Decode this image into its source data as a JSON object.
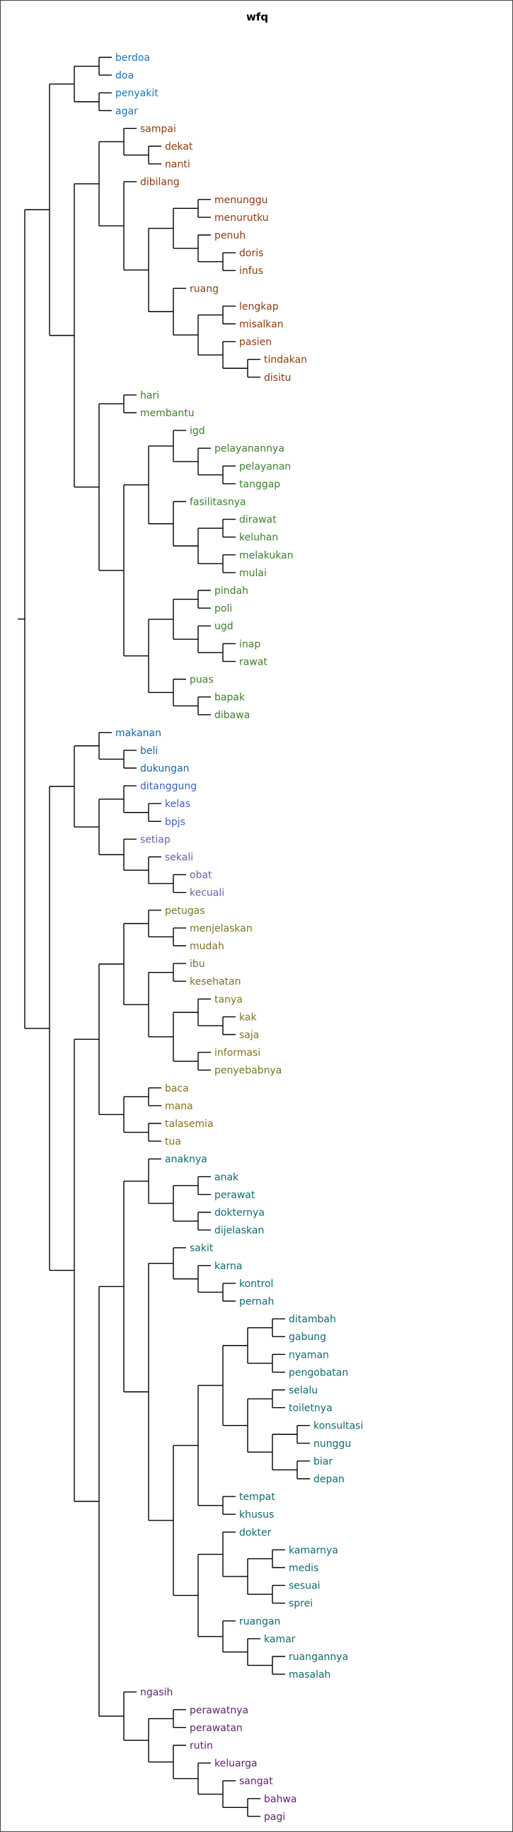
{
  "title": "wfq",
  "tree": {
    "c": [
      {
        "c": [
          {
            "c": [
              {
                "c": [
                  "berdoa",
                  "doa"
                ]
              },
              {
                "c": [
                  "penyakit",
                  "agar"
                ]
              }
            ]
          },
          {
            "c": [
              {
                "c": [
                  {
                    "c": [
                      "sampai",
                      {
                        "c": [
                          "dekat",
                          "nanti"
                        ]
                      }
                    ]
                  },
                  {
                    "c": [
                      "dibilang",
                      {
                        "c": [
                          {
                            "c": [
                              {
                                "c": [
                                  "menunggu",
                                  "menurutku"
                                ]
                              },
                              {
                                "c": [
                                  "penuh",
                                  {
                                    "c": [
                                      "doris",
                                      "infus"
                                    ]
                                  }
                                ]
                              }
                            ]
                          },
                          {
                            "c": [
                              "ruang",
                              {
                                "c": [
                                  {
                                    "c": [
                                      "lengkap",
                                      "misalkan"
                                    ]
                                  },
                                  {
                                    "c": [
                                      "pasien",
                                      {
                                        "c": [
                                          "tindakan",
                                          "disitu"
                                        ]
                                      }
                                    ]
                                  }
                                ]
                              }
                            ]
                          }
                        ]
                      }
                    ]
                  }
                ]
              },
              {
                "c": [
                  {
                    "c": [
                      "hari",
                      "membantu"
                    ]
                  },
                  {
                    "c": [
                      {
                        "c": [
                          {
                            "c": [
                              "igd",
                              {
                                "c": [
                                  "pelayanannya",
                                  {
                                    "c": [
                                      "pelayanan",
                                      "tanggap"
                                    ]
                                  }
                                ]
                              }
                            ]
                          },
                          {
                            "c": [
                              "fasilitasnya",
                              {
                                "c": [
                                  {
                                    "c": [
                                      "dirawat",
                                      "keluhan"
                                    ]
                                  },
                                  {
                                    "c": [
                                      "melakukan",
                                      "mulai"
                                    ]
                                  }
                                ]
                              }
                            ]
                          }
                        ]
                      },
                      {
                        "c": [
                          {
                            "c": [
                              {
                                "c": [
                                  "pindah",
                                  "poli"
                                ]
                              },
                              {
                                "c": [
                                  "ugd",
                                  {
                                    "c": [
                                      "inap",
                                      "rawat"
                                    ]
                                  }
                                ]
                              }
                            ]
                          },
                          {
                            "c": [
                              "puas",
                              {
                                "c": [
                                  "bapak",
                                  "dibawa"
                                ]
                              }
                            ]
                          }
                        ]
                      }
                    ]
                  }
                ]
              }
            ]
          }
        ]
      },
      {
        "c": [
          {
            "c": [
              {
                "c": [
                  "makanan",
                  {
                    "c": [
                      "beli",
                      "dukungan"
                    ]
                  }
                ]
              },
              {
                "c": [
                  {
                    "c": [
                      "ditanggung",
                      {
                        "c": [
                          "kelas",
                          "bpjs"
                        ]
                      }
                    ]
                  },
                  {
                    "c": [
                      "setiap",
                      {
                        "c": [
                          "sekali",
                          {
                            "c": [
                              "obat",
                              "kecuali"
                            ]
                          }
                        ]
                      }
                    ]
                  }
                ]
              }
            ]
          },
          {
            "c": [
              {
                "c": [
                  {
                    "c": [
                      {
                        "c": [
                          "petugas",
                          {
                            "c": [
                              "menjelaskan",
                              "mudah"
                            ]
                          }
                        ]
                      },
                      {
                        "c": [
                          {
                            "c": [
                              "ibu",
                              "kesehatan"
                            ]
                          },
                          {
                            "c": [
                              {
                                "c": [
                                  "tanya",
                                  {
                                    "c": [
                                      "kak",
                                      "saja"
                                    ]
                                  }
                                ]
                              },
                              {
                                "c": [
                                  "informasi",
                                  "penyebabnya"
                                ]
                              }
                            ]
                          }
                        ]
                      }
                    ]
                  },
                  {
                    "c": [
                      {
                        "c": [
                          "baca",
                          "mana"
                        ]
                      },
                      {
                        "c": [
                          "talasemia",
                          "tua"
                        ]
                      }
                    ]
                  }
                ]
              },
              {
                "c": [
                  {
                    "c": [
                      {
                        "c": [
                          "anaknya",
                          {
                            "c": [
                              {
                                "c": [
                                  "anak",
                                  "perawat"
                                ]
                              },
                              {
                                "c": [
                                  "dokternya",
                                  "dijelaskan"
                                ]
                              }
                            ]
                          }
                        ]
                      },
                      {
                        "c": [
                          {
                            "c": [
                              "sakit",
                              {
                                "c": [
                                  "karna",
                                  {
                                    "c": [
                                      "kontrol",
                                      "pernah"
                                    ]
                                  }
                                ]
                              }
                            ]
                          },
                          {
                            "c": [
                              {
                                "c": [
                                  {
                                    "c": [
                                      {
                                        "c": [
                                          {
                                            "c": [
                                              "ditambah",
                                              "gabung"
                                            ]
                                          },
                                          {
                                            "c": [
                                              "nyaman",
                                              "pengobatan"
                                            ]
                                          }
                                        ]
                                      },
                                      {
                                        "c": [
                                          {
                                            "c": [
                                              "selalu",
                                              "toiletnya"
                                            ]
                                          },
                                          {
                                            "c": [
                                              {
                                                "c": [
                                                  "konsultasi",
                                                  "nunggu"
                                                ]
                                              },
                                              {
                                                "c": [
                                                  "biar",
                                                  "depan"
                                                ]
                                              }
                                            ]
                                          }
                                        ]
                                      }
                                    ]
                                  },
                                  {
                                    "c": [
                                      "tempat",
                                      "khusus"
                                    ]
                                  }
                                ]
                              },
                              {
                                "c": [
                                  {
                                    "c": [
                                      "dokter",
                                      {
                                        "c": [
                                          {
                                            "c": [
                                              "kamarnya",
                                              "medis"
                                            ]
                                          },
                                          {
                                            "c": [
                                              "sesuai",
                                              "sprei"
                                            ]
                                          }
                                        ]
                                      }
                                    ]
                                  },
                                  {
                                    "c": [
                                      "ruangan",
                                      {
                                        "c": [
                                          "kamar",
                                          {
                                            "c": [
                                              "ruangannya",
                                              "masalah"
                                            ]
                                          }
                                        ]
                                      }
                                    ]
                                  }
                                ]
                              }
                            ]
                          }
                        ]
                      }
                    ]
                  },
                  {
                    "c": [
                      "ngasih",
                      {
                        "c": [
                          {
                            "c": [
                              "perawatnya",
                              "perawatan"
                            ]
                          },
                          {
                            "c": [
                              "rutin",
                              {
                                "c": [
                                  "keluarga",
                                  {
                                    "c": [
                                      "sangat",
                                      {
                                        "c": [
                                          "bahwa",
                                          "pagi"
                                        ]
                                      }
                                    ]
                                  }
                                ]
                              }
                            ]
                          }
                        ]
                      }
                    ]
                  }
                ]
              }
            ]
          }
        ]
      }
    ]
  },
  "label_colors": {
    "#1a72bb": [
      "berdoa",
      "doa",
      "penyakit",
      "agar"
    ],
    "#8b3a0f": [
      "sampai",
      "dekat",
      "nanti",
      "dibilang",
      "menunggu",
      "menurutku",
      "penuh",
      "doris",
      "infus",
      "ruang",
      "lengkap",
      "misalkan",
      "pasien",
      "tindakan",
      "disitu"
    ],
    "#3e7d2a": [
      "hari",
      "membantu",
      "igd",
      "pelayanannya",
      "pelayanan",
      "tanggap",
      "fasilitasnya",
      "dirawat",
      "keluhan",
      "melakukan",
      "mulai",
      "pindah",
      "poli",
      "ugd",
      "inap",
      "rawat",
      "puas",
      "bapak",
      "dibawa"
    ],
    "#1664a8": [
      "makanan",
      "beli",
      "dukungan"
    ],
    "#3a5fbf": [
      "ditanggung",
      "kelas",
      "bpjs"
    ],
    "#6a5ca8": [
      "setiap",
      "sekali",
      "obat",
      "kecuali"
    ],
    "#7a7423": [
      "petugas",
      "menjelaskan",
      "mudah",
      "ibu",
      "kesehatan",
      "tanya",
      "kak",
      "saja",
      "informasi",
      "penyebabnya"
    ],
    "#8a6d1f": [
      "baca",
      "mana",
      "talasemia",
      "tua"
    ],
    "#0f6a6e": [
      "anaknya",
      "anak",
      "perawat",
      "dokternya",
      "dijelaskan",
      "sakit",
      "karna",
      "kontrol",
      "pernah",
      "ditambah",
      "gabung",
      "nyaman",
      "pengobatan",
      "selalu",
      "toiletnya",
      "konsultasi",
      "nunggu",
      "biar",
      "depan",
      "tempat",
      "khusus",
      "dokter",
      "kamarnya",
      "medis",
      "sesuai",
      "sprei",
      "ruangan",
      "kamar",
      "ruangannya",
      "masalah"
    ],
    "#5e1f6e": [
      "ngasih",
      "perawatnya",
      "perawatan",
      "rutin",
      "keluarga",
      "sangat",
      "bahwa",
      "pagi"
    ]
  },
  "line_color": "#000000"
}
